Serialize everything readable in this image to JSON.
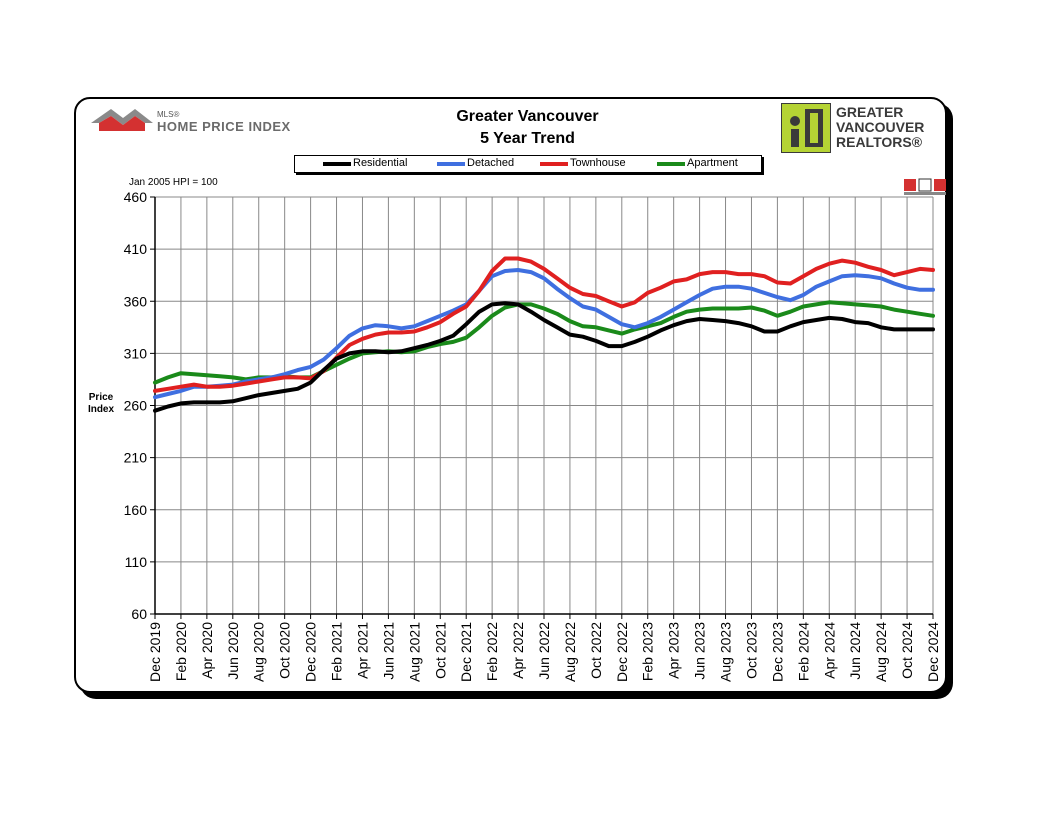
{
  "header": {
    "title_line1": "Greater Vancouver",
    "title_line2": "5 Year Trend",
    "mls_small": "MLS®",
    "mls_big": "HOME PRICE INDEX",
    "gvr_line1": "GREATER",
    "gvr_line2": "VANCOUVER",
    "gvr_line3": "REALTORS®",
    "note": "Jan 2005 HPI = 100"
  },
  "colors": {
    "Residential": "#000000",
    "Detached": "#3f6fe0",
    "Townhouse": "#e02020",
    "Apartment": "#1a8a1a",
    "gvr_green": "#b5d334",
    "mls_red": "#d43131"
  },
  "chart_data": {
    "type": "line",
    "title": "Greater Vancouver 5 Year Trend",
    "ylabel": "Price Index",
    "ylim": [
      60,
      460
    ],
    "yticks": [
      60,
      110,
      160,
      210,
      260,
      310,
      360,
      410,
      460
    ],
    "grid": true,
    "legend": "top",
    "x": [
      "Dec 2019",
      "Jan 2020",
      "Feb 2020",
      "Mar 2020",
      "Apr 2020",
      "May 2020",
      "Jun 2020",
      "Jul 2020",
      "Aug 2020",
      "Sep 2020",
      "Oct 2020",
      "Nov 2020",
      "Dec 2020",
      "Jan 2021",
      "Feb 2021",
      "Mar 2021",
      "Apr 2021",
      "May 2021",
      "Jun 2021",
      "Jul 2021",
      "Aug 2021",
      "Sep 2021",
      "Oct 2021",
      "Nov 2021",
      "Dec 2021",
      "Jan 2022",
      "Feb 2022",
      "Mar 2022",
      "Apr 2022",
      "May 2022",
      "Jun 2022",
      "Jul 2022",
      "Aug 2022",
      "Sep 2022",
      "Oct 2022",
      "Nov 2022",
      "Dec 2022",
      "Jan 2023",
      "Feb 2023",
      "Mar 2023",
      "Apr 2023",
      "May 2023",
      "Jun 2023",
      "Jul 2023",
      "Aug 2023",
      "Sep 2023",
      "Oct 2023",
      "Nov 2023",
      "Dec 2023",
      "Jan 2024",
      "Feb 2024",
      "Mar 2024",
      "Apr 2024",
      "May 2024",
      "Jun 2024",
      "Jul 2024",
      "Aug 2024",
      "Sep 2024",
      "Oct 2024",
      "Nov 2024",
      "Dec 2024"
    ],
    "xtick_labels": [
      "Dec 2019",
      "Feb 2020",
      "Apr 2020",
      "Jun 2020",
      "Aug 2020",
      "Oct 2020",
      "Dec 2020",
      "Feb 2021",
      "Apr 2021",
      "Jun 2021",
      "Aug 2021",
      "Oct 2021",
      "Dec 2021",
      "Feb 2022",
      "Apr 2022",
      "Jun 2022",
      "Aug 2022",
      "Oct 2022",
      "Dec 2022",
      "Feb 2023",
      "Apr 2023",
      "Jun 2023",
      "Aug 2023",
      "Oct 2023",
      "Dec 2023",
      "Feb 2024",
      "Apr 2024",
      "Jun 2024",
      "Aug 2024",
      "Oct 2024",
      "Dec 2024"
    ],
    "series": [
      {
        "name": "Residential",
        "values": [
          255,
          259,
          262,
          263,
          263,
          263,
          264,
          267,
          270,
          272,
          274,
          276,
          282,
          294,
          305,
          310,
          312,
          312,
          311,
          312,
          315,
          318,
          322,
          327,
          338,
          350,
          357,
          358,
          357,
          350,
          342,
          335,
          328,
          326,
          322,
          317,
          317,
          321,
          326,
          332,
          337,
          341,
          343,
          342,
          341,
          339,
          336,
          331,
          331,
          336,
          340,
          342,
          344,
          343,
          340,
          339,
          335,
          333,
          333,
          333,
          333
        ]
      },
      {
        "name": "Detached",
        "values": [
          268,
          271,
          274,
          278,
          278,
          279,
          280,
          283,
          285,
          287,
          290,
          294,
          297,
          304,
          315,
          327,
          334,
          337,
          336,
          334,
          336,
          341,
          346,
          351,
          357,
          370,
          384,
          389,
          390,
          388,
          382,
          372,
          363,
          355,
          352,
          345,
          338,
          335,
          339,
          345,
          352,
          359,
          366,
          372,
          374,
          374,
          372,
          368,
          364,
          361,
          366,
          374,
          379,
          384,
          385,
          384,
          382,
          377,
          373,
          371,
          371
        ]
      },
      {
        "name": "Townhouse",
        "values": [
          274,
          276,
          278,
          280,
          278,
          278,
          279,
          281,
          283,
          285,
          287,
          287,
          286,
          293,
          306,
          318,
          324,
          328,
          330,
          330,
          331,
          335,
          340,
          348,
          355,
          370,
          389,
          401,
          401,
          398,
          391,
          382,
          373,
          367,
          365,
          360,
          355,
          359,
          368,
          373,
          379,
          381,
          386,
          388,
          388,
          386,
          386,
          384,
          378,
          377,
          384,
          391,
          396,
          399,
          397,
          393,
          390,
          385,
          388,
          391,
          390
        ]
      },
      {
        "name": "Apartment",
        "values": [
          282,
          287,
          291,
          290,
          289,
          288,
          287,
          285,
          287,
          287,
          288,
          287,
          287,
          293,
          299,
          305,
          310,
          311,
          312,
          311,
          312,
          316,
          319,
          321,
          325,
          335,
          346,
          354,
          357,
          357,
          353,
          348,
          341,
          336,
          335,
          332,
          329,
          333,
          336,
          339,
          345,
          350,
          352,
          353,
          353,
          353,
          354,
          351,
          346,
          350,
          355,
          357,
          359,
          358,
          357,
          356,
          355,
          352,
          350,
          348,
          346
        ]
      }
    ]
  }
}
